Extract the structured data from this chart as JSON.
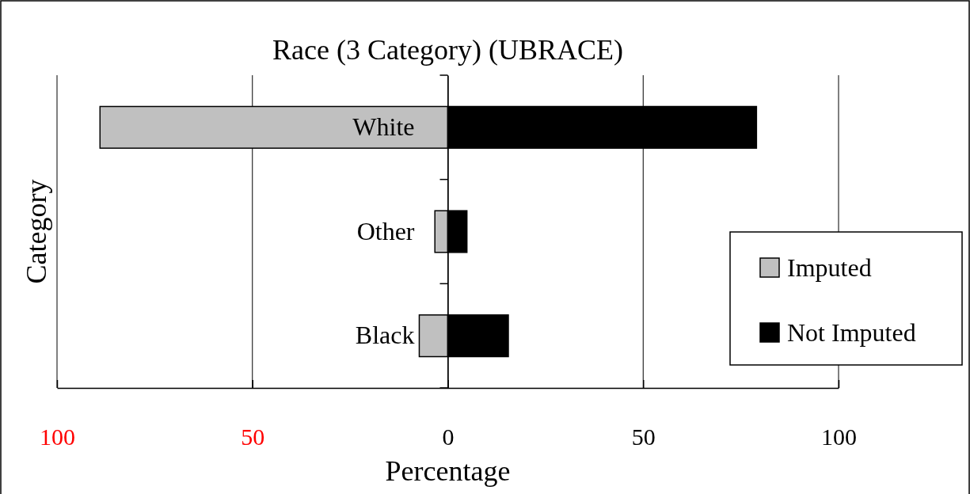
{
  "chart_data": {
    "type": "bar",
    "orientation": "horizontal",
    "stacked": true,
    "title": "Race (3 Category) (UBRACE)",
    "xlabel": "Percentage",
    "ylabel": "Category",
    "categories": [
      "White",
      "Other",
      "Black"
    ],
    "series": [
      {
        "name": "Imputed",
        "color": "#c0c0c0",
        "values": [
          -89,
          -3.3,
          -7.3
        ]
      },
      {
        "name": "Not Imputed",
        "color": "#000000",
        "values": [
          79,
          4.9,
          15.5
        ]
      }
    ],
    "xlim": [
      -100,
      100
    ],
    "xticks": [
      {
        "value": -100,
        "label": "100"
      },
      {
        "value": -50,
        "label": "50"
      },
      0,
      50,
      100
    ],
    "grid": "x",
    "legend": "right"
  }
}
